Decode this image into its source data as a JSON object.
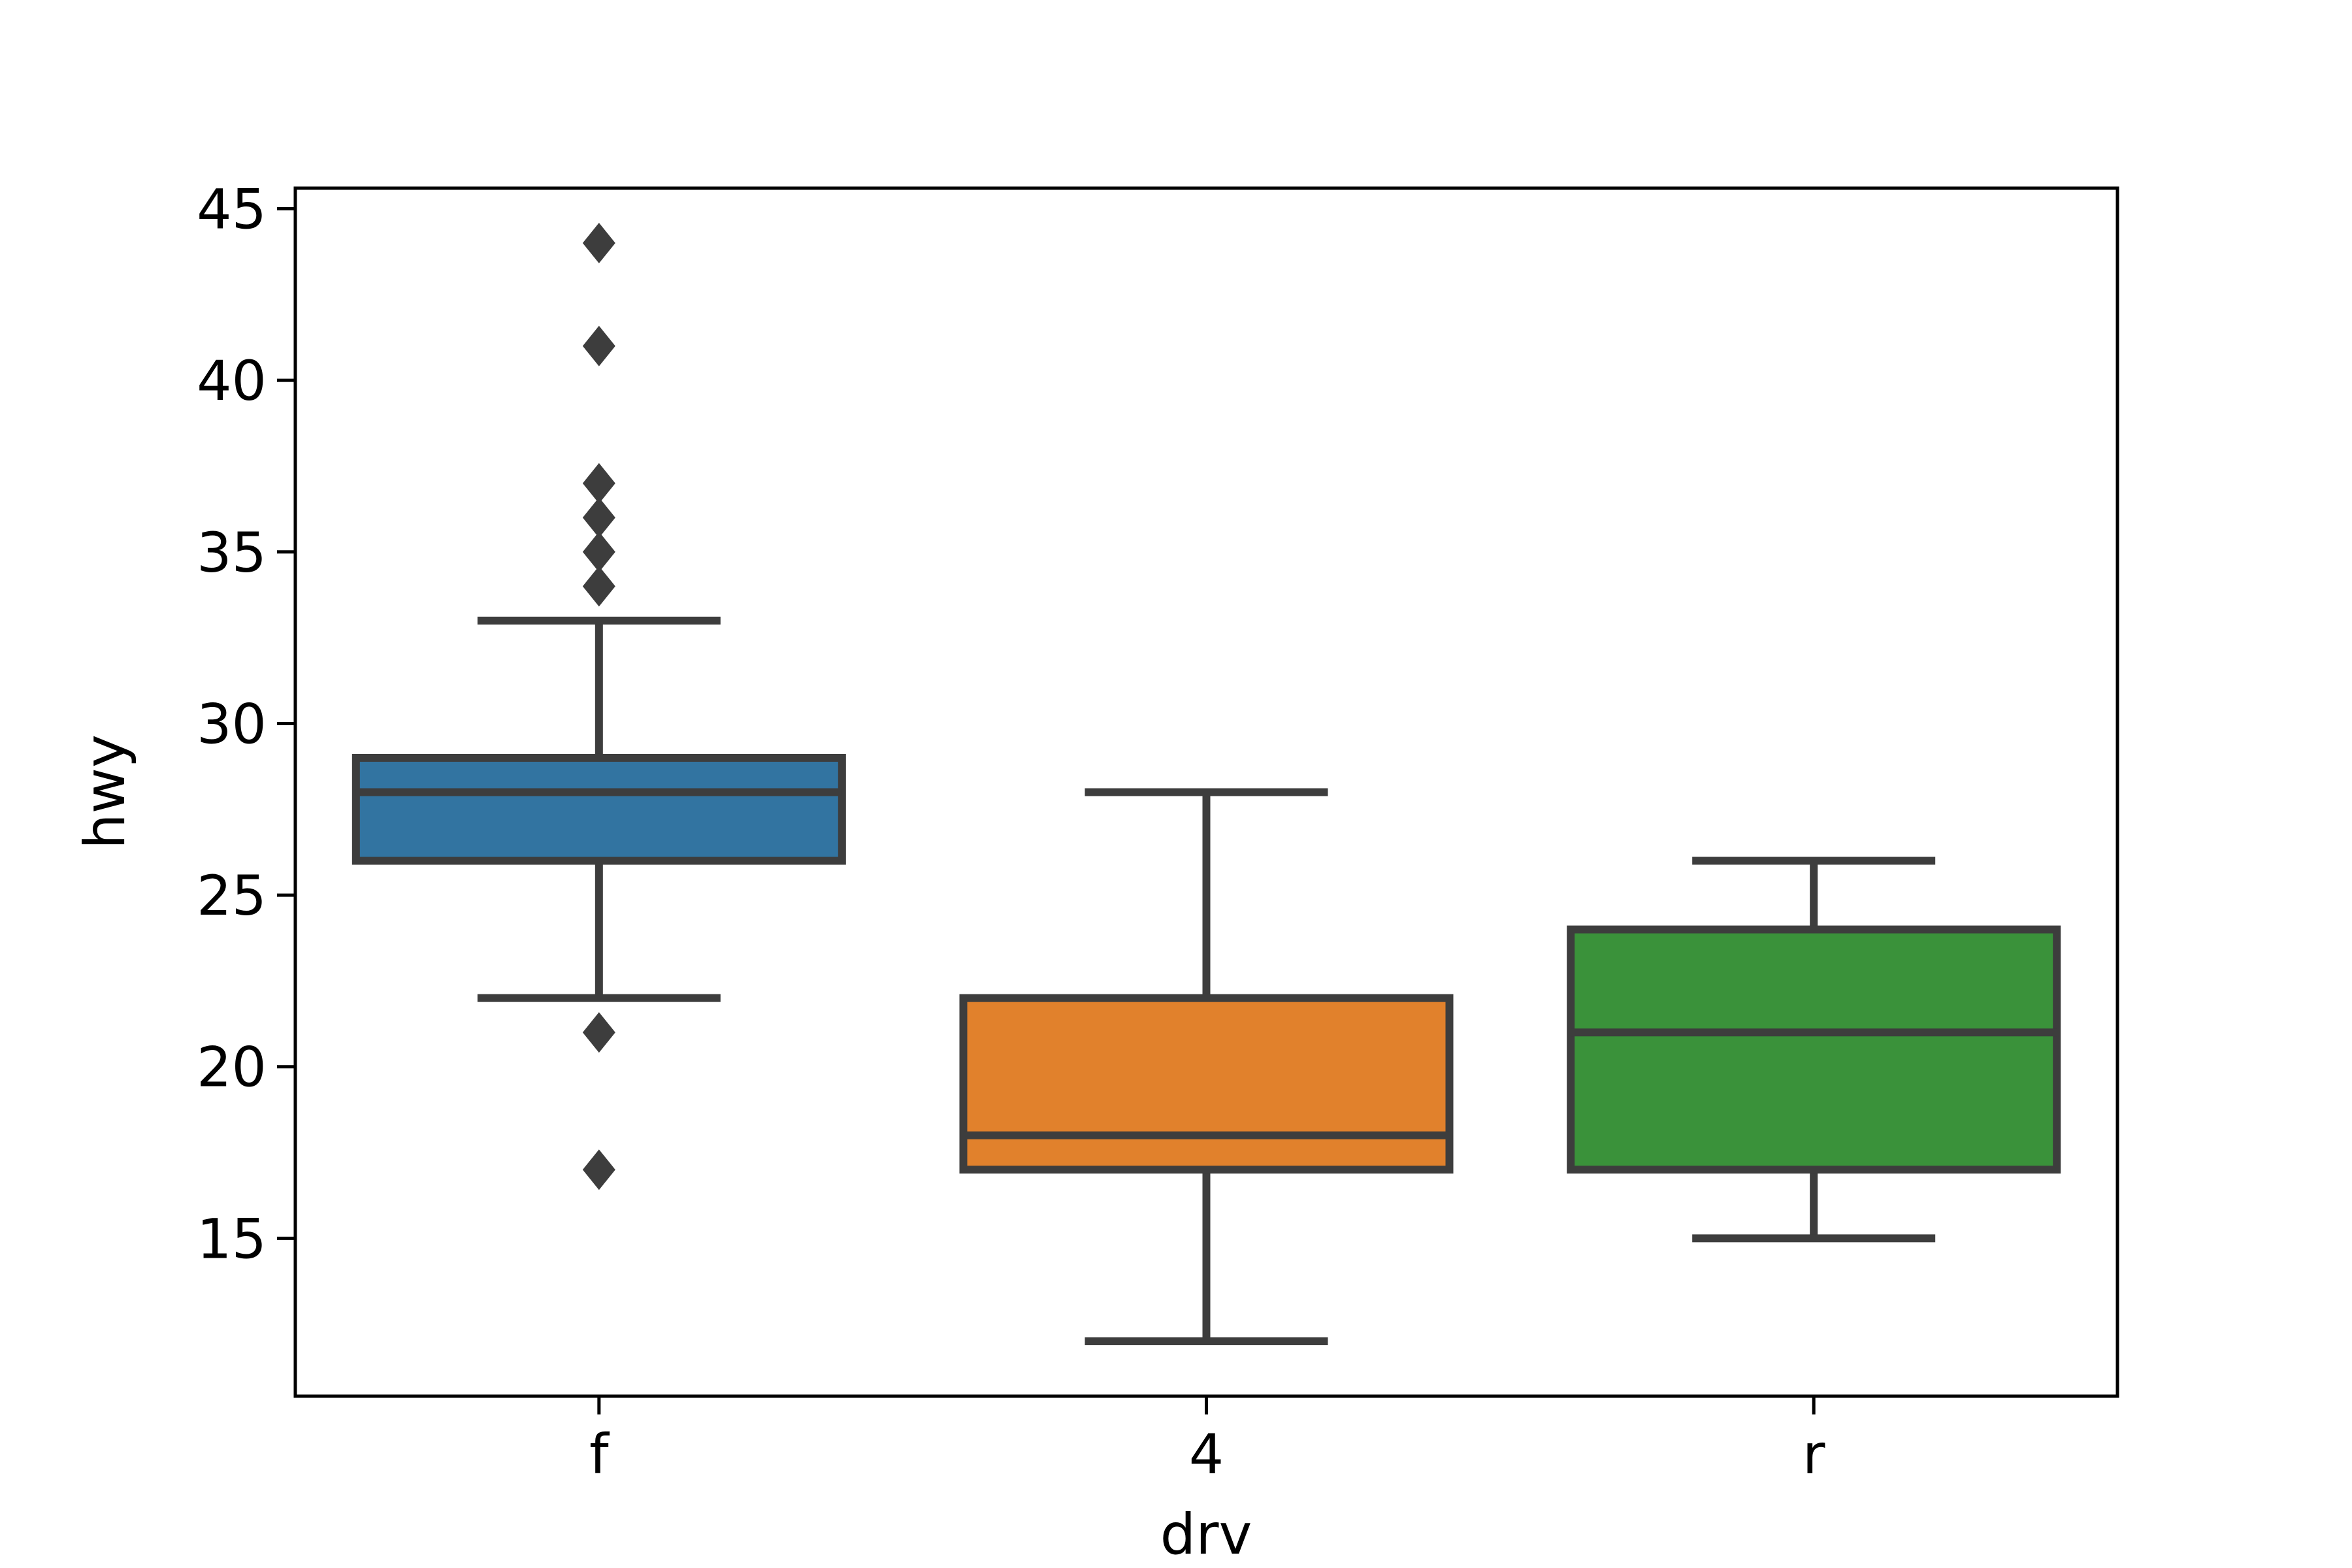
{
  "figure": {
    "background": "#ffffff"
  },
  "chart_data": {
    "type": "box",
    "title": "",
    "xlabel": "drv",
    "ylabel": "hwy",
    "categories": [
      "f",
      "4",
      "r"
    ],
    "ylim": [
      10.4,
      45.6
    ],
    "yticks": [
      45,
      40,
      35,
      30,
      25,
      20,
      15
    ],
    "grid": false,
    "legend": null,
    "boxes": [
      {
        "category": "f",
        "color": "#3274a1",
        "whisker_low": 22,
        "q1": 26,
        "median": 28,
        "q3": 29,
        "whisker_high": 33,
        "outliers": [
          44,
          41,
          37,
          36,
          35,
          34,
          21,
          17
        ]
      },
      {
        "category": "4",
        "color": "#e1812c",
        "whisker_low": 12,
        "q1": 17,
        "median": 18,
        "q3": 22,
        "whisker_high": 28,
        "outliers": []
      },
      {
        "category": "r",
        "color": "#3a923a",
        "whisker_low": 15,
        "q1": 17,
        "median": 21,
        "q3": 24,
        "whisker_high": 26,
        "outliers": []
      }
    ],
    "box_line_color": "#3d3d3d",
    "axis_color": "#000000",
    "flier_marker": "diamond"
  }
}
